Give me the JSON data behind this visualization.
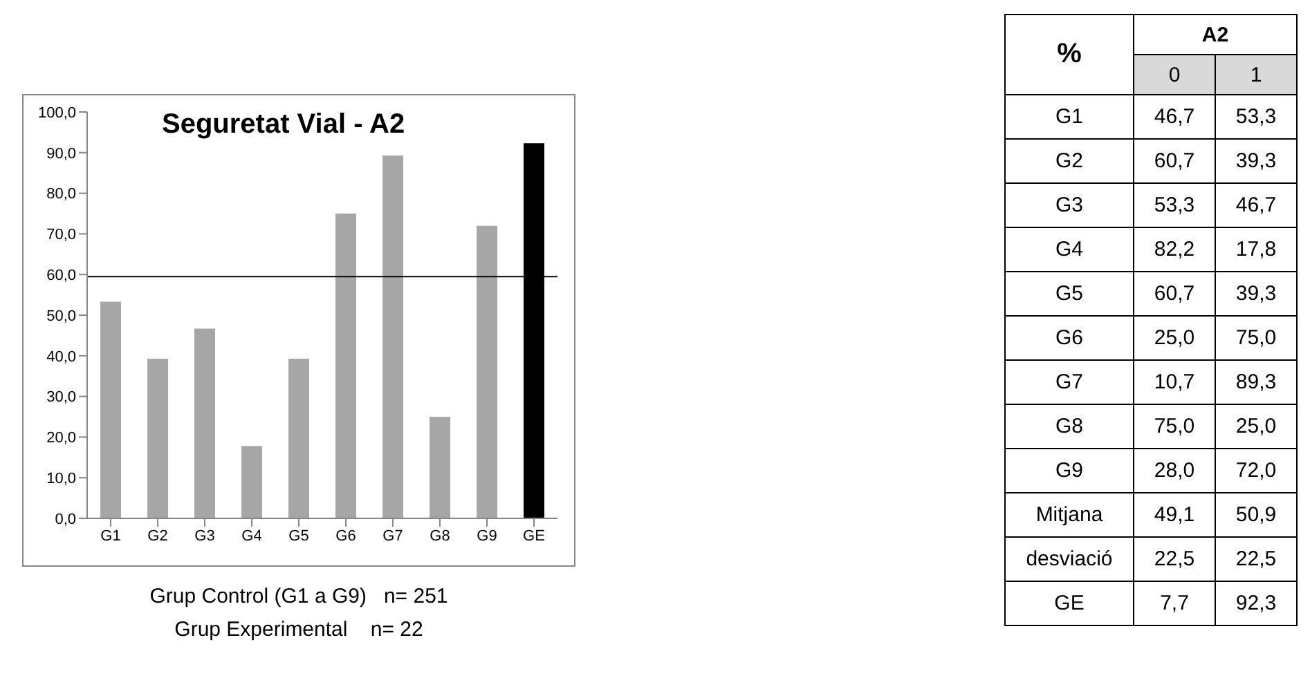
{
  "chart_data": [
    {
      "type": "bar",
      "title": "Seguretat Vial - A2",
      "categories": [
        "G1",
        "G2",
        "G3",
        "G4",
        "G5",
        "G6",
        "G7",
        "G8",
        "G9",
        "GE"
      ],
      "values": [
        53.3,
        39.3,
        46.7,
        17.8,
        39.3,
        75.0,
        89.3,
        25.0,
        72.0,
        92.3
      ],
      "colors": [
        "#a6a6a6",
        "#a6a6a6",
        "#a6a6a6",
        "#a6a6a6",
        "#a6a6a6",
        "#a6a6a6",
        "#a6a6a6",
        "#a6a6a6",
        "#a6a6a6",
        "#000000"
      ],
      "ylim": [
        0,
        100
      ],
      "yticks": [
        {
          "value": 0,
          "label": "0,0"
        },
        {
          "value": 10,
          "label": "10,0"
        },
        {
          "value": 20,
          "label": "20,0"
        },
        {
          "value": 30,
          "label": "30,0"
        },
        {
          "value": 40,
          "label": "40,0"
        },
        {
          "value": 50,
          "label": "50,0"
        },
        {
          "value": 60,
          "label": "60,0"
        },
        {
          "value": 70,
          "label": "70,0"
        },
        {
          "value": 80,
          "label": "80,0"
        },
        {
          "value": 90,
          "label": "90,0"
        },
        {
          "value": 100,
          "label": "100,0"
        }
      ],
      "ref_lines": [
        {
          "axis": "y",
          "value": 59.5,
          "color": "#000000"
        }
      ],
      "grid": false,
      "annotations": [
        "Grup Control (G1 a G9)   n= 251",
        "Grup Experimental    n= 22"
      ]
    },
    {
      "type": "other",
      "title": "A2",
      "ylabel": "%",
      "categories": [
        "0",
        "1"
      ],
      "y_categories": [
        "G1",
        "G2",
        "G3",
        "G4",
        "G5",
        "G6",
        "G7",
        "G8",
        "G9",
        "Mitjana",
        "desviació",
        "GE"
      ],
      "cell_labels": [
        [
          "46,7",
          "53,3"
        ],
        [
          "60,7",
          "39,3"
        ],
        [
          "53,3",
          "46,7"
        ],
        [
          "82,2",
          "17,8"
        ],
        [
          "60,7",
          "39,3"
        ],
        [
          "25,0",
          "75,0"
        ],
        [
          "10,7",
          "89,3"
        ],
        [
          "75,0",
          "25,0"
        ],
        [
          "28,0",
          "72,0"
        ],
        [
          "49,1",
          "50,9"
        ],
        [
          "22,5",
          "22,5"
        ],
        [
          "7,7",
          "92,3"
        ]
      ]
    }
  ]
}
